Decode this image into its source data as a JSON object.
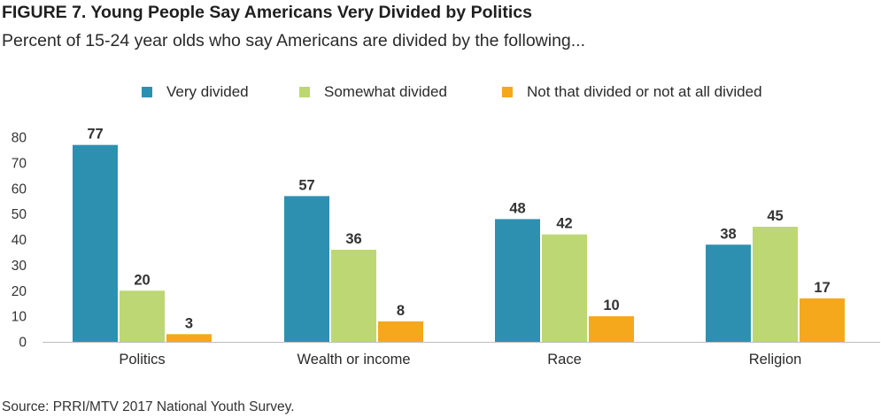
{
  "chart_data": {
    "type": "bar",
    "title": "FIGURE 7. Young People Say Americans Very Divided by Politics",
    "subtitle": "Percent of 15-24 year olds who say Americans are divided by the following...",
    "categories": [
      "Politics",
      "Wealth or income",
      "Race",
      "Religion"
    ],
    "series": [
      {
        "name": "Very divided",
        "color": "#2e90b0",
        "values": [
          77,
          57,
          48,
          38
        ]
      },
      {
        "name": "Somewhat divided",
        "color": "#bcd774",
        "values": [
          20,
          36,
          42,
          45
        ]
      },
      {
        "name": "Not that divided or not at all divided",
        "color": "#f5a81c",
        "values": [
          3,
          8,
          10,
          17
        ]
      }
    ],
    "ylim": [
      0,
      80
    ],
    "yticks": [
      0,
      10,
      20,
      30,
      40,
      50,
      60,
      70,
      80
    ],
    "xlabel": "",
    "ylabel": "",
    "grid": false,
    "legend_position": "top-center",
    "source": "Source: PRRI/MTV 2017 National Youth Survey."
  }
}
